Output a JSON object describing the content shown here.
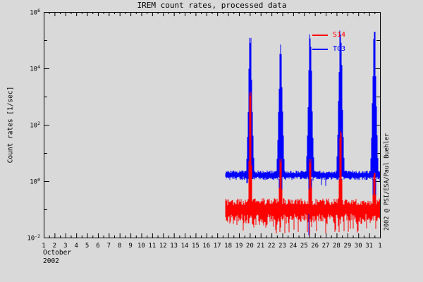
{
  "window": {
    "background": "#d9d9d9",
    "foreground": "#000000"
  },
  "chart_data": {
    "type": "line",
    "title": "IREM count rates, processed data",
    "ylabel": "Count rates [1/sec]",
    "credit": "2002 @ PSI/ESA/Paul Buehler",
    "x_axis": {
      "month": "October",
      "year": "2002",
      "day_labels": [
        "1",
        "2",
        "3",
        "4",
        "5",
        "6",
        "7",
        "8",
        "9",
        "10",
        "11",
        "12",
        "13",
        "14",
        "15",
        "16",
        "17",
        "18",
        "19",
        "20",
        "21",
        "22",
        "23",
        "24",
        "25",
        "26",
        "27",
        "28",
        "29",
        "30",
        "31",
        "1"
      ],
      "minor_ticks_per_day": 2
    },
    "y_axis": {
      "scale": "log",
      "min_exp": -2,
      "max_exp": 6,
      "labeled_exps": [
        6,
        4,
        2,
        0,
        -2
      ],
      "unit": "counts/sec"
    },
    "legend": [
      {
        "label": "S14",
        "color": "#ff0000"
      },
      {
        "label": "TC3",
        "color": "#0000ff"
      }
    ],
    "series": [
      {
        "name": "TC3",
        "color": "#0000ff",
        "start_day": 17.75,
        "end_day": 32.0,
        "baseline": 1.7,
        "band_range": [
          1.1,
          2.4
        ],
        "spikes": [
          {
            "day": 20.01,
            "peak": 120000
          },
          {
            "day": 22.81,
            "peak": 70000
          },
          {
            "day": 25.57,
            "peak": 160000
          },
          {
            "day": 28.33,
            "peak": 220000
          },
          {
            "day": 31.45,
            "peak": 200000
          }
        ],
        "spike_notch_floor": 0.35,
        "dropout": {
          "day": 25.46,
          "floor": 0.012
        }
      },
      {
        "name": "S14",
        "color": "#ff0000",
        "start_day": 17.78,
        "end_day": 32.0,
        "baseline": 0.11,
        "band_range": [
          0.03,
          0.25
        ],
        "spikes": [
          {
            "day": 20.01,
            "peak": 1500
          },
          {
            "day": 22.81,
            "peak": 6
          },
          {
            "day": 25.57,
            "peak": 6
          },
          {
            "day": 28.33,
            "peak": 60
          },
          {
            "day": 31.45,
            "peak": 2
          }
        ],
        "comb": {
          "start_day": 22.35,
          "interval_days": 0.42,
          "floor": 0.014
        },
        "dips": [
          {
            "day": 20.35,
            "floor": 0.02
          },
          {
            "day": 21.55,
            "floor": 0.02
          }
        ],
        "dropout": {
          "day": 25.46,
          "floor": 0.012
        }
      }
    ]
  }
}
